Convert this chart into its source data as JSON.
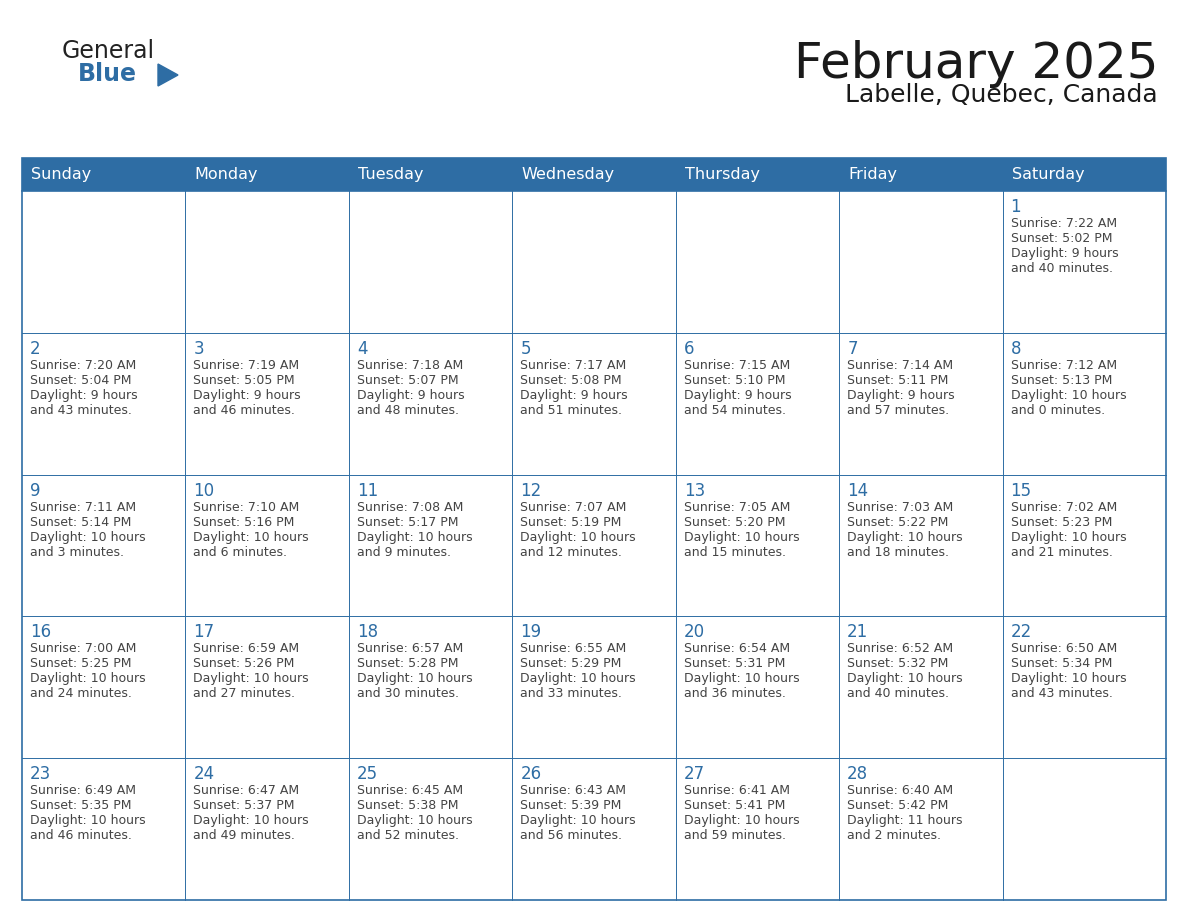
{
  "title": "February 2025",
  "subtitle": "Labelle, Quebec, Canada",
  "days_of_week": [
    "Sunday",
    "Monday",
    "Tuesday",
    "Wednesday",
    "Thursday",
    "Friday",
    "Saturday"
  ],
  "header_bg": "#2E6DA4",
  "header_text": "#FFFFFF",
  "cell_bg": "#FFFFFF",
  "border_color": "#2E6DA4",
  "inner_line_color": "#2E6DA4",
  "day_number_color": "#2E6DA4",
  "text_color": "#444444",
  "calendar_data": [
    [
      null,
      null,
      null,
      null,
      null,
      null,
      {
        "day": 1,
        "sunrise": "7:22 AM",
        "sunset": "5:02 PM",
        "daylight": "9 hours and 40 minutes."
      }
    ],
    [
      {
        "day": 2,
        "sunrise": "7:20 AM",
        "sunset": "5:04 PM",
        "daylight": "9 hours and 43 minutes."
      },
      {
        "day": 3,
        "sunrise": "7:19 AM",
        "sunset": "5:05 PM",
        "daylight": "9 hours and 46 minutes."
      },
      {
        "day": 4,
        "sunrise": "7:18 AM",
        "sunset": "5:07 PM",
        "daylight": "9 hours and 48 minutes."
      },
      {
        "day": 5,
        "sunrise": "7:17 AM",
        "sunset": "5:08 PM",
        "daylight": "9 hours and 51 minutes."
      },
      {
        "day": 6,
        "sunrise": "7:15 AM",
        "sunset": "5:10 PM",
        "daylight": "9 hours and 54 minutes."
      },
      {
        "day": 7,
        "sunrise": "7:14 AM",
        "sunset": "5:11 PM",
        "daylight": "9 hours and 57 minutes."
      },
      {
        "day": 8,
        "sunrise": "7:12 AM",
        "sunset": "5:13 PM",
        "daylight": "10 hours and 0 minutes."
      }
    ],
    [
      {
        "day": 9,
        "sunrise": "7:11 AM",
        "sunset": "5:14 PM",
        "daylight": "10 hours and 3 minutes."
      },
      {
        "day": 10,
        "sunrise": "7:10 AM",
        "sunset": "5:16 PM",
        "daylight": "10 hours and 6 minutes."
      },
      {
        "day": 11,
        "sunrise": "7:08 AM",
        "sunset": "5:17 PM",
        "daylight": "10 hours and 9 minutes."
      },
      {
        "day": 12,
        "sunrise": "7:07 AM",
        "sunset": "5:19 PM",
        "daylight": "10 hours and 12 minutes."
      },
      {
        "day": 13,
        "sunrise": "7:05 AM",
        "sunset": "5:20 PM",
        "daylight": "10 hours and 15 minutes."
      },
      {
        "day": 14,
        "sunrise": "7:03 AM",
        "sunset": "5:22 PM",
        "daylight": "10 hours and 18 minutes."
      },
      {
        "day": 15,
        "sunrise": "7:02 AM",
        "sunset": "5:23 PM",
        "daylight": "10 hours and 21 minutes."
      }
    ],
    [
      {
        "day": 16,
        "sunrise": "7:00 AM",
        "sunset": "5:25 PM",
        "daylight": "10 hours and 24 minutes."
      },
      {
        "day": 17,
        "sunrise": "6:59 AM",
        "sunset": "5:26 PM",
        "daylight": "10 hours and 27 minutes."
      },
      {
        "day": 18,
        "sunrise": "6:57 AM",
        "sunset": "5:28 PM",
        "daylight": "10 hours and 30 minutes."
      },
      {
        "day": 19,
        "sunrise": "6:55 AM",
        "sunset": "5:29 PM",
        "daylight": "10 hours and 33 minutes."
      },
      {
        "day": 20,
        "sunrise": "6:54 AM",
        "sunset": "5:31 PM",
        "daylight": "10 hours and 36 minutes."
      },
      {
        "day": 21,
        "sunrise": "6:52 AM",
        "sunset": "5:32 PM",
        "daylight": "10 hours and 40 minutes."
      },
      {
        "day": 22,
        "sunrise": "6:50 AM",
        "sunset": "5:34 PM",
        "daylight": "10 hours and 43 minutes."
      }
    ],
    [
      {
        "day": 23,
        "sunrise": "6:49 AM",
        "sunset": "5:35 PM",
        "daylight": "10 hours and 46 minutes."
      },
      {
        "day": 24,
        "sunrise": "6:47 AM",
        "sunset": "5:37 PM",
        "daylight": "10 hours and 49 minutes."
      },
      {
        "day": 25,
        "sunrise": "6:45 AM",
        "sunset": "5:38 PM",
        "daylight": "10 hours and 52 minutes."
      },
      {
        "day": 26,
        "sunrise": "6:43 AM",
        "sunset": "5:39 PM",
        "daylight": "10 hours and 56 minutes."
      },
      {
        "day": 27,
        "sunrise": "6:41 AM",
        "sunset": "5:41 PM",
        "daylight": "10 hours and 59 minutes."
      },
      {
        "day": 28,
        "sunrise": "6:40 AM",
        "sunset": "5:42 PM",
        "daylight": "11 hours and 2 minutes."
      },
      null
    ]
  ],
  "logo_general_color": "#222222",
  "logo_blue_color": "#2E6DA4",
  "figsize": [
    11.88,
    9.18
  ],
  "dpi": 100
}
